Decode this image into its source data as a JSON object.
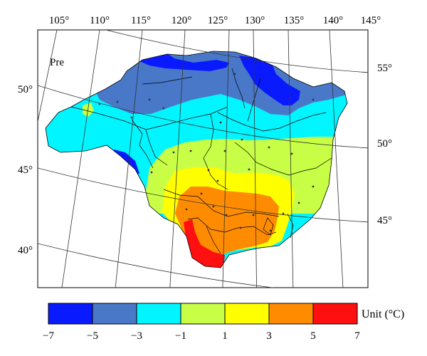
{
  "map": {
    "panel_label": "Pre",
    "longitude_labels": [
      "105°",
      "110°",
      "115°",
      "120°",
      "125°",
      "130°",
      "135°",
      "140°",
      "145°"
    ],
    "latitude_labels_left": [
      "50°",
      "45°",
      "40°"
    ],
    "latitude_labels_right": [
      "55°",
      "50°",
      "45°"
    ]
  },
  "legend": {
    "unit_label": "Unit (°C)",
    "ticks": [
      "−7",
      "−5",
      "−3",
      "−1",
      "1",
      "3",
      "5",
      "7"
    ],
    "colors": [
      "#0a1aff",
      "#4a78c8",
      "#00f5ff",
      "#c8ff46",
      "#ffff00",
      "#ff8c00",
      "#ff1010"
    ]
  }
}
